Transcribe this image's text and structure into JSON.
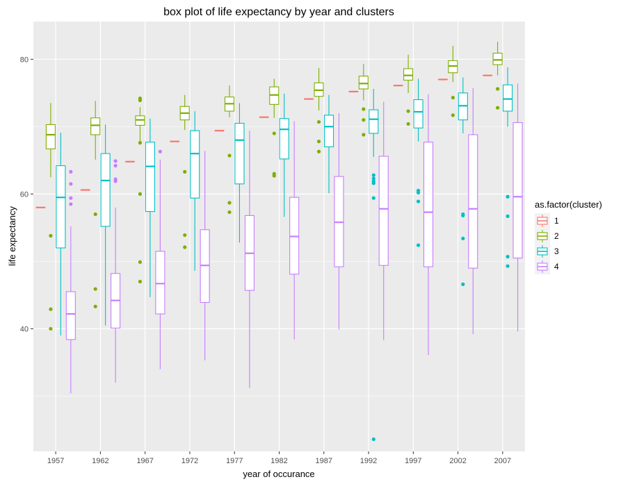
{
  "chart_data": {
    "type": "box",
    "title": "box plot of life expectancy by year and clusters",
    "xlabel": "year of occurance",
    "ylabel": "life expectancy",
    "categories": [
      "1957",
      "1962",
      "1967",
      "1972",
      "1977",
      "1982",
      "1987",
      "1992",
      "1997",
      "2002",
      "2007"
    ],
    "y_ticks": [
      40,
      60,
      80
    ],
    "ylim": [
      21.8,
      85.6
    ],
    "grid": true,
    "legend": {
      "title": "as.factor(cluster)",
      "placement": "right",
      "entries": [
        "1",
        "2",
        "3",
        "4"
      ]
    },
    "colors": {
      "1": "#F8766D",
      "2": "#7CAE00",
      "3": "#00BFC4",
      "4": "#C77CFF"
    },
    "series": [
      {
        "name": "1",
        "boxes": [
          {
            "min": 58.0,
            "q1": 58.0,
            "median": 58.0,
            "q3": 58.0,
            "max": 58.0,
            "outliers": []
          },
          {
            "min": 60.6,
            "q1": 60.6,
            "median": 60.6,
            "q3": 60.6,
            "max": 60.6,
            "outliers": []
          },
          {
            "min": 64.8,
            "q1": 64.8,
            "median": 64.8,
            "q3": 64.8,
            "max": 64.8,
            "outliers": []
          },
          {
            "min": 67.8,
            "q1": 67.8,
            "median": 67.8,
            "q3": 67.8,
            "max": 67.8,
            "outliers": []
          },
          {
            "min": 69.4,
            "q1": 69.4,
            "median": 69.4,
            "q3": 69.4,
            "max": 69.4,
            "outliers": []
          },
          {
            "min": 71.4,
            "q1": 71.4,
            "median": 71.4,
            "q3": 71.4,
            "max": 71.4,
            "outliers": []
          },
          {
            "min": 74.1,
            "q1": 74.1,
            "median": 74.1,
            "q3": 74.1,
            "max": 74.1,
            "outliers": []
          },
          {
            "min": 75.2,
            "q1": 75.2,
            "median": 75.2,
            "q3": 75.2,
            "max": 75.2,
            "outliers": []
          },
          {
            "min": 76.1,
            "q1": 76.1,
            "median": 76.1,
            "q3": 76.1,
            "max": 76.1,
            "outliers": []
          },
          {
            "min": 77.0,
            "q1": 77.0,
            "median": 77.0,
            "q3": 77.0,
            "max": 77.0,
            "outliers": []
          },
          {
            "min": 77.6,
            "q1": 77.6,
            "median": 77.6,
            "q3": 77.6,
            "max": 77.6,
            "outliers": []
          }
        ]
      },
      {
        "name": "2",
        "boxes": [
          {
            "min": 62.5,
            "q1": 66.7,
            "median": 68.8,
            "q3": 70.3,
            "max": 73.5,
            "outliers": [
              53.8,
              42.9,
              40.0
            ]
          },
          {
            "min": 65.1,
            "q1": 68.8,
            "median": 70.2,
            "q3": 71.3,
            "max": 73.8,
            "outliers": [
              57.0,
              45.9,
              43.3
            ]
          },
          {
            "min": 67.7,
            "q1": 70.2,
            "median": 71.0,
            "q3": 71.6,
            "max": 72.9,
            "outliers": [
              74.2,
              73.9,
              67.6,
              60.0,
              49.9,
              47.0
            ]
          },
          {
            "min": 69.5,
            "q1": 71.0,
            "median": 72.0,
            "q3": 73.0,
            "max": 74.7,
            "outliers": [
              63.3,
              53.9,
              52.1
            ]
          },
          {
            "min": 71.4,
            "q1": 72.3,
            "median": 73.4,
            "q3": 74.4,
            "max": 76.1,
            "outliers": [
              65.7,
              58.7,
              57.3
            ]
          },
          {
            "min": 71.3,
            "q1": 73.3,
            "median": 74.7,
            "q3": 75.9,
            "max": 77.1,
            "outliers": [
              69.0,
              63.0,
              62.7
            ]
          },
          {
            "min": 72.4,
            "q1": 74.5,
            "median": 75.4,
            "q3": 76.5,
            "max": 78.7,
            "outliers": [
              70.7,
              67.8,
              66.3
            ]
          },
          {
            "min": 73.9,
            "q1": 75.6,
            "median": 76.4,
            "q3": 77.5,
            "max": 79.3,
            "outliers": [
              72.6,
              71.0,
              68.8
            ]
          },
          {
            "min": 75.0,
            "q1": 76.9,
            "median": 77.6,
            "q3": 78.6,
            "max": 80.7,
            "outliers": [
              72.3,
              70.4
            ]
          },
          {
            "min": 76.6,
            "q1": 78.0,
            "median": 79.0,
            "q3": 79.8,
            "max": 82.0,
            "outliers": [
              74.3,
              71.7
            ]
          },
          {
            "min": 77.6,
            "q1": 79.2,
            "median": 79.9,
            "q3": 80.9,
            "max": 82.6,
            "outliers": [
              75.6,
              72.8
            ]
          }
        ]
      },
      {
        "name": "3",
        "boxes": [
          {
            "min": 39.0,
            "q1": 52.0,
            "median": 59.5,
            "q3": 64.2,
            "max": 69.1,
            "outliers": []
          },
          {
            "min": 40.5,
            "q1": 55.2,
            "median": 62.0,
            "q3": 66.0,
            "max": 70.3,
            "outliers": []
          },
          {
            "min": 44.7,
            "q1": 57.4,
            "median": 64.1,
            "q3": 67.7,
            "max": 71.2,
            "outliers": []
          },
          {
            "min": 48.6,
            "q1": 59.4,
            "median": 66.0,
            "q3": 69.4,
            "max": 72.3,
            "outliers": []
          },
          {
            "min": 52.8,
            "q1": 61.5,
            "median": 68.0,
            "q3": 70.5,
            "max": 73.5,
            "outliers": []
          },
          {
            "min": 56.6,
            "q1": 65.2,
            "median": 69.6,
            "q3": 71.2,
            "max": 74.9,
            "outliers": []
          },
          {
            "min": 60.1,
            "q1": 67.0,
            "median": 70.0,
            "q3": 71.7,
            "max": 74.7,
            "outliers": []
          },
          {
            "min": 65.5,
            "q1": 69.0,
            "median": 71.1,
            "q3": 72.5,
            "max": 75.6,
            "outliers": [
              62.8,
              62.3,
              61.9,
              61.6,
              59.4,
              23.6
            ]
          },
          {
            "min": 67.8,
            "q1": 69.8,
            "median": 72.2,
            "q3": 74.0,
            "max": 77.1,
            "outliers": [
              60.5,
              60.2,
              58.9,
              52.4
            ]
          },
          {
            "min": 69.0,
            "q1": 71.0,
            "median": 73.1,
            "q3": 75.0,
            "max": 77.3,
            "outliers": [
              57.0,
              56.8,
              53.4,
              46.6
            ]
          },
          {
            "min": 70.0,
            "q1": 72.3,
            "median": 74.1,
            "q3": 76.2,
            "max": 78.8,
            "outliers": [
              59.6,
              56.7,
              50.7,
              49.3
            ]
          }
        ]
      },
      {
        "name": "4",
        "boxes": [
          {
            "min": 30.4,
            "q1": 38.4,
            "median": 42.2,
            "q3": 45.5,
            "max": 55.2,
            "outliers": [
              63.3,
              61.5,
              59.4,
              58.5
            ]
          },
          {
            "min": 32.0,
            "q1": 40.1,
            "median": 44.2,
            "q3": 48.2,
            "max": 58.0,
            "outliers": [
              64.9,
              64.2,
              62.2,
              61.9
            ]
          },
          {
            "min": 34.0,
            "q1": 42.2,
            "median": 46.7,
            "q3": 51.5,
            "max": 65.1,
            "outliers": [
              66.3
            ]
          },
          {
            "min": 35.3,
            "q1": 43.9,
            "median": 49.4,
            "q3": 54.7,
            "max": 66.4,
            "outliers": []
          },
          {
            "min": 31.2,
            "q1": 45.7,
            "median": 51.2,
            "q3": 56.8,
            "max": 69.4,
            "outliers": []
          },
          {
            "min": 38.4,
            "q1": 48.1,
            "median": 53.7,
            "q3": 59.5,
            "max": 70.8,
            "outliers": []
          },
          {
            "min": 39.9,
            "q1": 49.2,
            "median": 55.8,
            "q3": 62.6,
            "max": 72.0,
            "outliers": []
          },
          {
            "min": 38.3,
            "q1": 49.4,
            "median": 57.8,
            "q3": 65.6,
            "max": 73.7,
            "outliers": []
          },
          {
            "min": 36.1,
            "q1": 49.2,
            "median": 57.3,
            "q3": 67.7,
            "max": 74.8,
            "outliers": []
          },
          {
            "min": 39.2,
            "q1": 49.0,
            "median": 57.8,
            "q3": 68.8,
            "max": 75.7,
            "outliers": []
          },
          {
            "min": 39.6,
            "q1": 50.5,
            "median": 59.6,
            "q3": 70.6,
            "max": 76.4,
            "outliers": []
          }
        ]
      }
    ]
  }
}
